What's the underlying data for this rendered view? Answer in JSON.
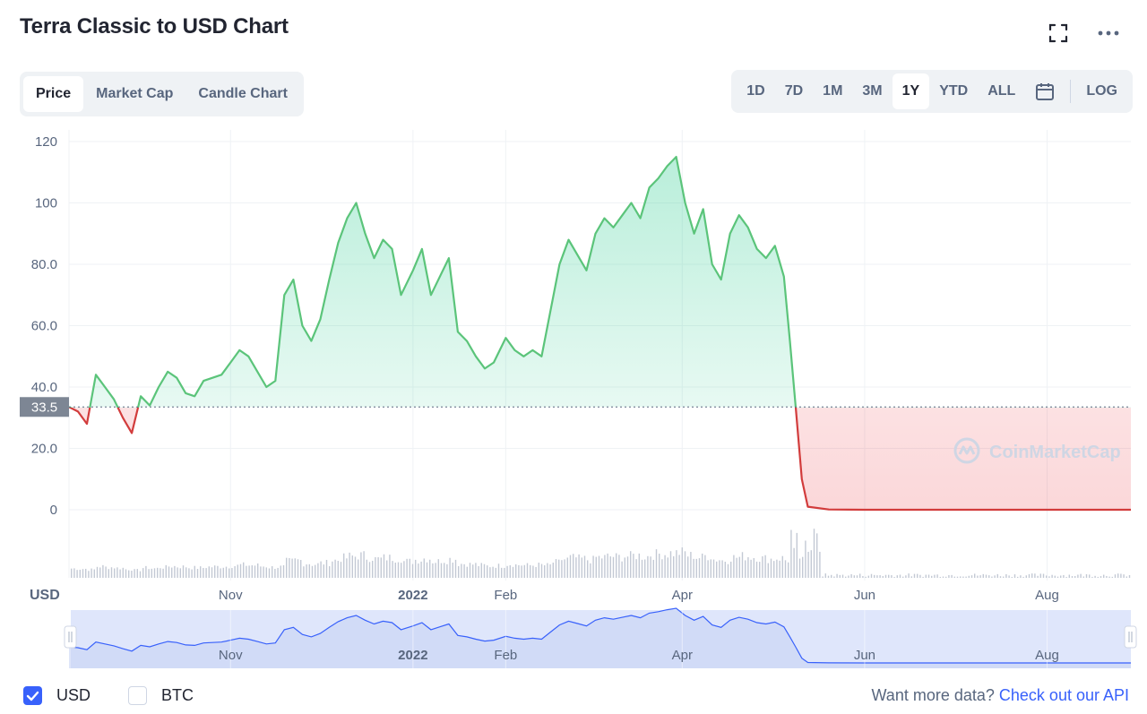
{
  "title": "Terra Classic to USD Chart",
  "tabs": [
    "Price",
    "Market Cap",
    "Candle Chart"
  ],
  "active_tab": "Price",
  "ranges": [
    "1D",
    "7D",
    "1M",
    "3M",
    "1Y",
    "YTD",
    "ALL"
  ],
  "active_range": "1Y",
  "log_label": "LOG",
  "icons": {
    "fullscreen": "fullscreen-icon",
    "more": "more-icon",
    "calendar": "calendar-icon"
  },
  "colors": {
    "up": "#16c784",
    "up_line": "#5bc47a",
    "down": "#d23c3c",
    "accent": "#3861fb",
    "navigator_fill": "#dfe6fb",
    "navigator_line": "#3861fb"
  },
  "currency_label": "USD",
  "watermark": "CoinMarketCap",
  "footer": {
    "usd_label": "USD",
    "usd_checked": true,
    "btc_label": "BTC",
    "btc_checked": false,
    "api_text": "Want more data?",
    "api_link": "Check out our API"
  },
  "chart_data": {
    "type": "line",
    "ylim": [
      0,
      120
    ],
    "y_ticks": [
      "0",
      "20.0",
      "40.0",
      "60.0",
      "80.0",
      "100",
      "120"
    ],
    "y_tick_values": [
      0,
      20,
      40,
      60,
      80,
      100,
      120
    ],
    "baseline_value": 33.5,
    "baseline_label": "33.5",
    "x_tick_labels": [
      "Nov",
      "2022",
      "Feb",
      "Apr",
      "Jun",
      "Aug"
    ],
    "x_tick_dates": [
      "2021-11-01",
      "2022-01-01",
      "2022-02-01",
      "2022-04-01",
      "2022-06-01",
      "2022-08-01"
    ],
    "x_range": [
      "2021-09-08",
      "2022-08-29"
    ],
    "grid": true,
    "series": [
      {
        "x": [
          "2021-09-08",
          "2021-09-11",
          "2021-09-14",
          "2021-09-17",
          "2021-09-20",
          "2021-09-23",
          "2021-09-26",
          "2021-09-29",
          "2021-10-02",
          "2021-10-05",
          "2021-10-08",
          "2021-10-11",
          "2021-10-14",
          "2021-10-17",
          "2021-10-20",
          "2021-10-23",
          "2021-10-26",
          "2021-10-29",
          "2021-11-01",
          "2021-11-04",
          "2021-11-07",
          "2021-11-10",
          "2021-11-13",
          "2021-11-16",
          "2021-11-19",
          "2021-11-22",
          "2021-11-25",
          "2021-11-28",
          "2021-12-01",
          "2021-12-04",
          "2021-12-07",
          "2021-12-10",
          "2021-12-13",
          "2021-12-16",
          "2021-12-19",
          "2021-12-22",
          "2021-12-25",
          "2021-12-28",
          "2022-01-01",
          "2022-01-04",
          "2022-01-07",
          "2022-01-10",
          "2022-01-13",
          "2022-01-16",
          "2022-01-19",
          "2022-01-22",
          "2022-01-25",
          "2022-01-28",
          "2022-02-01",
          "2022-02-04",
          "2022-02-07",
          "2022-02-10",
          "2022-02-13",
          "2022-02-16",
          "2022-02-19",
          "2022-02-22",
          "2022-02-25",
          "2022-02-28",
          "2022-03-03",
          "2022-03-06",
          "2022-03-09",
          "2022-03-12",
          "2022-03-15",
          "2022-03-18",
          "2022-03-21",
          "2022-03-24",
          "2022-03-27",
          "2022-03-30",
          "2022-04-02",
          "2022-04-05",
          "2022-04-08",
          "2022-04-11",
          "2022-04-14",
          "2022-04-17",
          "2022-04-20",
          "2022-04-23",
          "2022-04-26",
          "2022-04-29",
          "2022-05-02",
          "2022-05-05",
          "2022-05-07",
          "2022-05-09",
          "2022-05-11",
          "2022-05-13",
          "2022-05-20",
          "2022-06-01",
          "2022-07-01",
          "2022-08-01",
          "2022-08-29"
        ],
        "values": [
          33.5,
          32,
          28,
          44,
          40,
          36,
          30,
          25,
          37,
          34,
          40,
          45,
          43,
          38,
          37,
          42,
          43,
          44,
          48,
          52,
          50,
          45,
          40,
          42,
          70,
          75,
          60,
          55,
          62,
          75,
          87,
          95,
          100,
          90,
          82,
          88,
          85,
          70,
          78,
          85,
          70,
          76,
          82,
          58,
          55,
          50,
          46,
          48,
          56,
          52,
          50,
          52,
          50,
          65,
          80,
          88,
          83,
          78,
          90,
          95,
          92,
          96,
          100,
          95,
          105,
          108,
          112,
          115,
          100,
          90,
          98,
          80,
          75,
          90,
          96,
          92,
          85,
          82,
          86,
          76,
          55,
          33,
          10,
          1,
          0.1,
          0.0002,
          0.0001,
          0.0001,
          0.0001
        ]
      }
    ]
  }
}
